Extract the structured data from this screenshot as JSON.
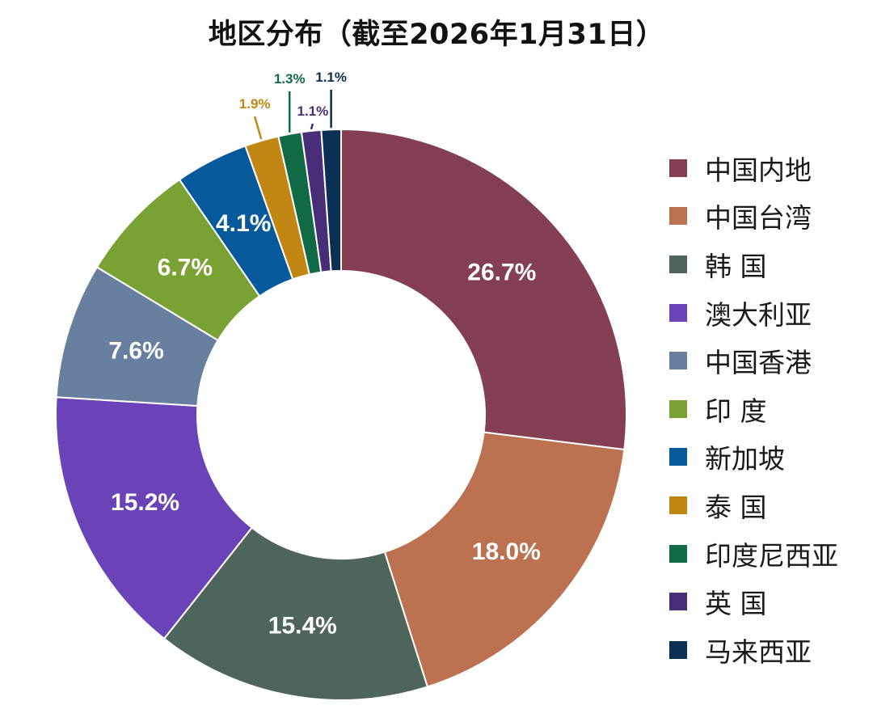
{
  "chart_data": {
    "type": "pie",
    "donut": true,
    "title": "地区分布（截至2026年1月31日）",
    "categories": [
      "中国内地",
      "中国台湾",
      "韩 国",
      "澳大利亚",
      "中国香港",
      "印 度",
      "新加坡",
      "泰 国",
      "印度尼西亚",
      "英 国",
      "马来西亚"
    ],
    "values": [
      26.7,
      18.0,
      15.4,
      15.2,
      7.6,
      6.7,
      4.1,
      1.9,
      1.3,
      1.1,
      1.1
    ],
    "labels": [
      "26.7%",
      "18.0%",
      "15.4%",
      "15.2%",
      "7.6%",
      "6.7%",
      "4.1%",
      "1.9%",
      "1.3%",
      "1.1%",
      "1.1%"
    ],
    "colors": [
      "#843f53",
      "#bc7250",
      "#4f655b",
      "#6a43b9",
      "#687f9f",
      "#79a134",
      "#065a9b",
      "#c28613",
      "#0f6a45",
      "#482e79",
      "#0c2f55"
    ],
    "legend_position": "right",
    "label_placement": [
      "inside",
      "inside",
      "inside",
      "inside",
      "inside",
      "inside",
      "inside",
      "outside",
      "outside",
      "outside",
      "outside"
    ]
  }
}
